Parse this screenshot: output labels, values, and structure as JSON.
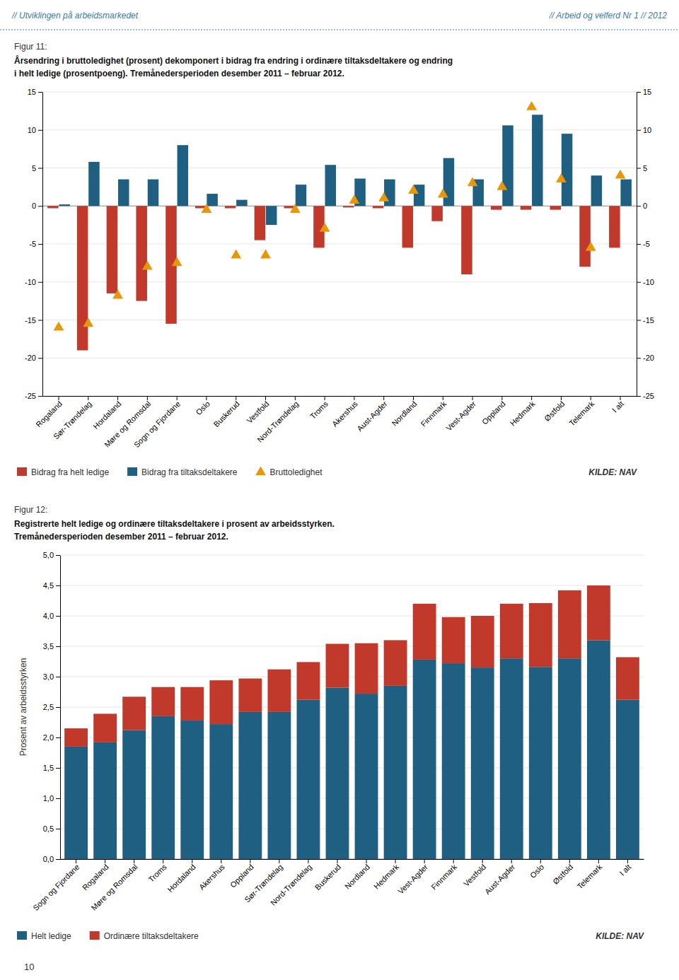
{
  "header_left": "// Utviklingen på arbeidsmarkedet",
  "header_right": "// Arbeid og velferd Nr 1 // 2012",
  "footer_text": "10",
  "chart_data": [
    {
      "type": "bar",
      "title": "Figur 11:",
      "subtitle": [
        "Årsendring i bruttoledighet (prosent) dekomponert i bidrag fra endring i ordinære tiltaksdeltakere og endring",
        "i helt ledige (prosentpoeng). Tremånedersperioden desember 2011 – februar 2012."
      ],
      "categories": [
        "Rogaland",
        "Sør-Trøndelag",
        "Hordaland",
        "Møre og Romsdal",
        "Sogn og Fjordane",
        "Oslo",
        "Buskerud",
        "Vestfold",
        "Nord-Trøndelag",
        "Troms",
        "Akershus",
        "Aust-Agder",
        "Nordland",
        "Finnmark",
        "Vest-Agder",
        "Oppland",
        "Hedmark",
        "Østfold",
        "Telemark",
        "I alt"
      ],
      "series": [
        {
          "name": "Bidrag fra helt ledige",
          "color": "#c0392b",
          "values": [
            -0.3,
            -19.0,
            -11.5,
            -12.5,
            -15.5,
            -0.3,
            -0.3,
            -4.5,
            -0.3,
            -5.5,
            -0.2,
            -0.3,
            -5.5,
            -2.0,
            -9.0,
            -0.5,
            -0.5,
            -0.5,
            -8.0,
            -5.5
          ]
        },
        {
          "name": "Bidrag fra tiltaksdeltakere",
          "color": "#1f5f82",
          "values": [
            0.2,
            5.8,
            3.5,
            3.5,
            8.0,
            1.6,
            0.8,
            -2.5,
            2.8,
            5.4,
            3.6,
            3.5,
            2.8,
            6.3,
            3.5,
            10.6,
            12.0,
            9.5,
            4.0,
            3.5
          ]
        },
        {
          "name": "Bruttoledighet",
          "color": "#e8960a",
          "type": "scatter",
          "marker": "triangle",
          "values": [
            -16.0,
            -15.5,
            -11.8,
            -8.0,
            -7.5,
            -0.5,
            -6.5,
            -6.5,
            -0.5,
            -3.0,
            0.7,
            1.0,
            2.0,
            1.5,
            3.0,
            2.5,
            13.0,
            3.5,
            -5.5,
            4.0
          ]
        }
      ],
      "ylim": [
        -25,
        15
      ],
      "yticks": [
        -25,
        -20,
        -15,
        -10,
        -5,
        0,
        5,
        10,
        15
      ],
      "y2lim": [
        -25,
        15
      ],
      "y2ticks": [
        -25,
        -20,
        -15,
        -10,
        -5,
        0,
        5,
        10,
        15
      ],
      "grid": true,
      "legend": "bottom",
      "annotations": [
        "KILDE: NAV"
      ]
    },
    {
      "type": "bar",
      "title": "Figur 12:",
      "subtitle": [
        "Registrerte helt ledige og ordinære tiltaksdeltakere i prosent av arbeidsstyrken.",
        "Tremånedersperioden desember 2011 – februar 2012."
      ],
      "categories": [
        "Sogn og Fjordane",
        "Rogaland",
        "Møre og Romsdal",
        "Troms",
        "Hordaland",
        "Akershus",
        "Oppland",
        "Sør-Trøndelag",
        "Nord-Trøndelag",
        "Buskerud",
        "Nordland",
        "Hedmark",
        "Vest-Agder",
        "Finnmark",
        "Vestfold",
        "Aust-Agder",
        "Oslo",
        "Østfold",
        "Telemark",
        "I alt"
      ],
      "series": [
        {
          "name": "Helt ledige",
          "color": "#1f5f82",
          "values": [
            1.85,
            1.92,
            2.12,
            2.35,
            2.28,
            2.22,
            2.42,
            2.42,
            2.62,
            2.82,
            2.72,
            2.85,
            3.28,
            3.22,
            3.15,
            3.3,
            3.16,
            3.3,
            3.6,
            2.62
          ]
        },
        {
          "name": "Ordinære tiltaksdeltakere",
          "color": "#c0392b",
          "values": [
            0.3,
            0.47,
            0.55,
            0.48,
            0.55,
            0.72,
            0.55,
            0.7,
            0.62,
            0.72,
            0.83,
            0.75,
            0.92,
            0.76,
            0.85,
            0.9,
            1.05,
            1.12,
            0.9,
            0.7
          ]
        }
      ],
      "stacked": true,
      "ylim": [
        0,
        5.0
      ],
      "yticks": [
        {
          "value": 0.0,
          "label": "0,0"
        },
        {
          "value": 0.5,
          "label": "0,5"
        },
        {
          "value": 1.0,
          "label": "1,0"
        },
        {
          "value": 1.5,
          "label": "1,5"
        },
        {
          "value": 2.0,
          "label": "2,0"
        },
        {
          "value": 2.5,
          "label": "2,5"
        },
        {
          "value": 3.0,
          "label": "3,0"
        },
        {
          "value": 3.5,
          "label": "3,5"
        },
        {
          "value": 4.0,
          "label": "4,0"
        },
        {
          "value": 4.5,
          "label": "4,5"
        },
        {
          "value": 5.0,
          "label": "5,0"
        }
      ],
      "ylabel": "Prosent av arbeidsstyrken",
      "grid": true,
      "legend": "bottom",
      "annotations": [
        "KILDE: NAV"
      ]
    }
  ]
}
